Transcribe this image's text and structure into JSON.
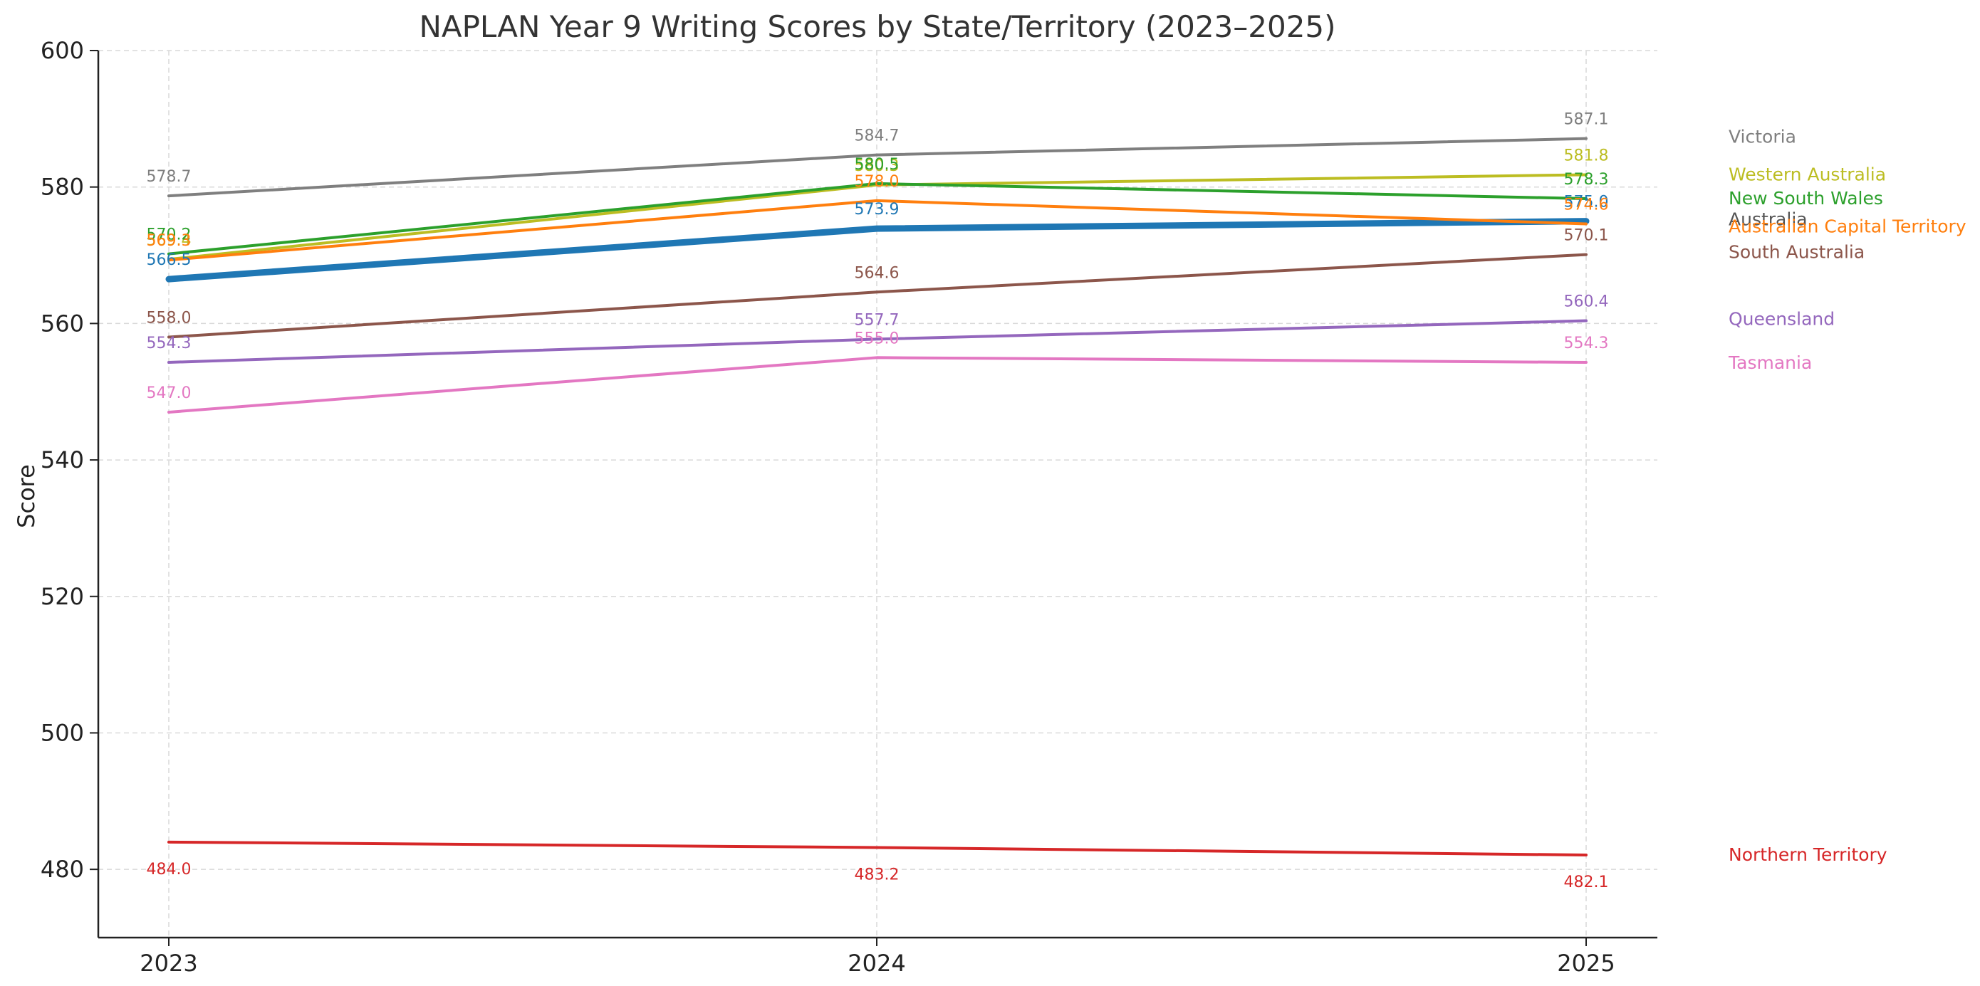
{
  "chart_data": {
    "type": "line",
    "title": "NAPLAN Year 9 Writing Scores by State/Territory (2023–2025)",
    "xlabel": "",
    "ylabel": "Score",
    "x": [
      "2023",
      "2024",
      "2025"
    ],
    "ylim": [
      470,
      600
    ],
    "yticks": [
      480,
      500,
      520,
      540,
      560,
      580,
      600
    ],
    "grid": true,
    "legend": "right-end labels",
    "series": [
      {
        "name": "Victoria",
        "color": "#7f7f7f",
        "values": [
          578.7,
          584.7,
          587.1
        ],
        "labels": [
          "578.7",
          "584.7",
          "587.1"
        ],
        "bold": false
      },
      {
        "name": "Western Australia",
        "color": "#bcbd22",
        "values": [
          569.4,
          580.3,
          581.8
        ],
        "labels": [
          "569.4",
          "580.3",
          "581.8"
        ],
        "bold": false
      },
      {
        "name": "New South Wales",
        "color": "#2ca02c",
        "values": [
          570.2,
          580.5,
          578.3
        ],
        "labels": [
          "570.2",
          "580.5",
          "578.3"
        ],
        "bold": false
      },
      {
        "name": "Australia",
        "color": "#1f77b4",
        "values": [
          566.5,
          573.9,
          575.0
        ],
        "labels": [
          "566.5",
          "573.9",
          "575.0"
        ],
        "bold": true
      },
      {
        "name": "Australian Capital Territory",
        "color": "#ff7f0e",
        "values": [
          569.3,
          578.0,
          574.6
        ],
        "labels": [
          "569.3",
          "578.0",
          "574.6"
        ],
        "bold": false
      },
      {
        "name": "South Australia",
        "color": "#8c564b",
        "values": [
          558.0,
          564.6,
          570.1
        ],
        "labels": [
          "558.0",
          "564.6",
          "570.1"
        ],
        "bold": false
      },
      {
        "name": "Queensland",
        "color": "#9467bd",
        "values": [
          554.3,
          557.7,
          560.4
        ],
        "labels": [
          "554.3",
          "557.7",
          "560.4"
        ],
        "bold": false
      },
      {
        "name": "Tasmania",
        "color": "#e377c2",
        "values": [
          547.0,
          555.0,
          554.3
        ],
        "labels": [
          "547.0",
          "555.0",
          "554.3"
        ],
        "bold": false
      },
      {
        "name": "Northern Territory",
        "color": "#d62728",
        "values": [
          484.0,
          483.2,
          482.1
        ],
        "labels": [
          "484.0",
          "483.2",
          "482.1"
        ],
        "bold": false
      }
    ]
  }
}
